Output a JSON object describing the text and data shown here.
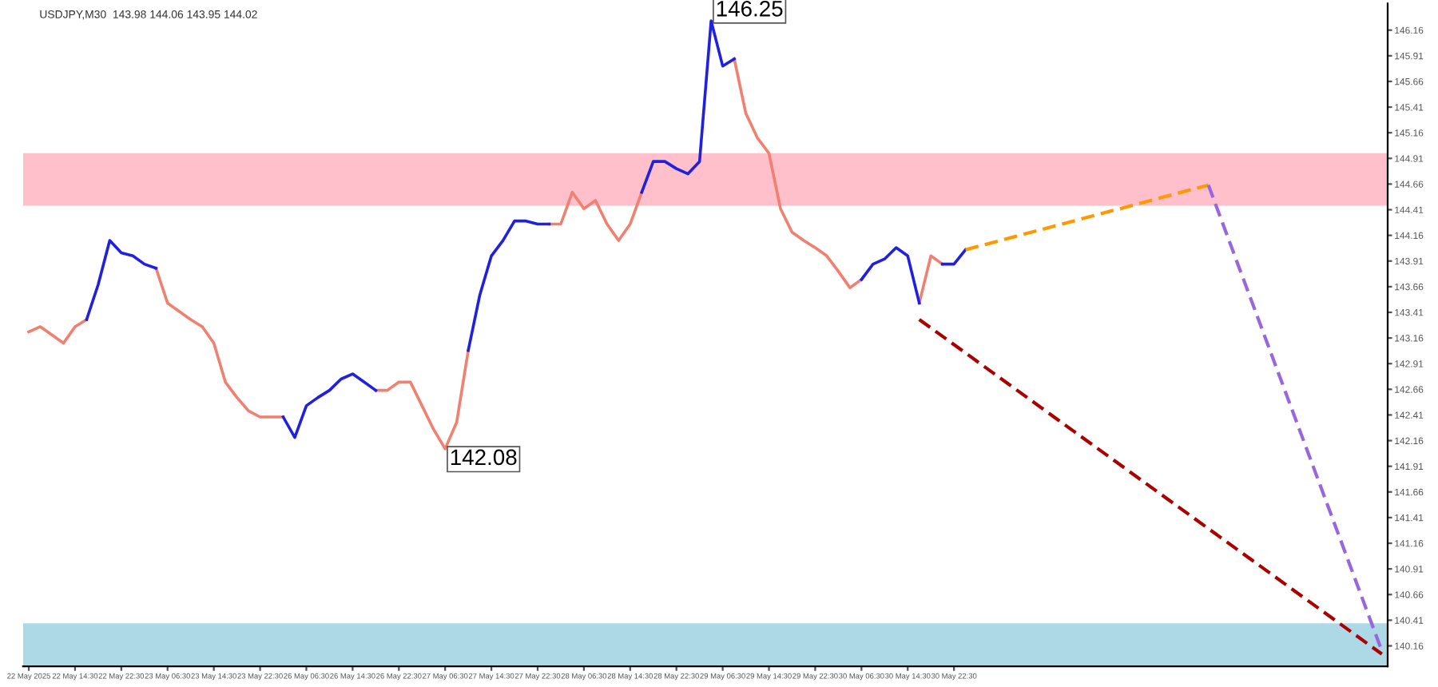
{
  "chart_data": {
    "type": "line",
    "title": "USDJPY,M30  143.98 144.06 143.95 144.02",
    "categories": [
      "22 May 2025",
      null,
      null,
      null,
      "22 May 14:30",
      null,
      null,
      null,
      "22 May 22:30",
      null,
      null,
      null,
      "23 May 06:30",
      null,
      null,
      null,
      "23 May 14:30",
      null,
      null,
      null,
      "23 May 22:30",
      null,
      null,
      null,
      "26 May 06:30",
      null,
      null,
      null,
      "26 May 14:30",
      null,
      null,
      null,
      "26 May 22:30",
      null,
      null,
      null,
      "27 May 06:30",
      null,
      null,
      null,
      "27 May 14:30",
      null,
      null,
      null,
      "27 May 22:30",
      null,
      null,
      null,
      "28 May 06:30",
      null,
      null,
      null,
      "28 May 14:30",
      null,
      null,
      null,
      "28 May 22:30",
      null,
      null,
      null,
      "29 May 06:30",
      null,
      null,
      null,
      "29 May 14:30",
      null,
      null,
      null,
      "29 May 22:30",
      null,
      null,
      null,
      "30 May 06:30",
      null,
      null,
      null,
      "30 May 14:30",
      null,
      null,
      null,
      "30 May 22:30",
      null,
      null,
      null,
      null,
      null,
      null,
      null,
      null,
      null,
      null,
      null,
      null,
      null,
      null,
      null,
      null,
      null,
      null,
      null,
      null,
      null,
      null,
      null,
      null,
      null,
      null,
      null,
      null,
      null,
      null,
      null,
      null,
      null,
      null,
      null,
      null,
      null
    ],
    "series": [
      {
        "color": "#f08070",
        "values": [
          143.22,
          143.27,
          143.19,
          143.11,
          143.27,
          143.34,
          null,
          null,
          null,
          null,
          null,
          143.84,
          143.5,
          143.42,
          143.34,
          143.27,
          143.11,
          142.73,
          142.58,
          142.45,
          142.39,
          142.39,
          142.39,
          null,
          null,
          null,
          null,
          null,
          null,
          null,
          142.65,
          142.65,
          142.73,
          142.73,
          142.5,
          142.27,
          142.08,
          142.34,
          143.04,
          null,
          null,
          null,
          null,
          null,
          null,
          144.27,
          144.27,
          144.58,
          144.42,
          144.5,
          144.27,
          144.11,
          144.27,
          144.58,
          null,
          null,
          null,
          null,
          null,
          null,
          null,
          145.88,
          145.35,
          145.11,
          144.96,
          144.42,
          144.19,
          144.11,
          144.04,
          143.96,
          143.81,
          143.65,
          143.73,
          null,
          null,
          null,
          null,
          143.5,
          143.96,
          143.88,
          null,
          null,
          null,
          null,
          null,
          null,
          null,
          null,
          null,
          null,
          null,
          null,
          null,
          null,
          null,
          null,
          null,
          null,
          null,
          null,
          null,
          null,
          null,
          null,
          null,
          null,
          null,
          null,
          null,
          null,
          null,
          null,
          null,
          null,
          null,
          null,
          null,
          null
        ]
      },
      {
        "color": "#2020e0",
        "values": [
          null,
          null,
          null,
          null,
          null,
          143.34,
          143.68,
          144.11,
          143.99,
          143.96,
          143.88,
          143.84,
          null,
          null,
          null,
          null,
          null,
          null,
          null,
          null,
          null,
          null,
          142.39,
          142.19,
          142.5,
          142.58,
          142.65,
          142.76,
          142.81,
          142.73,
          142.65,
          null,
          null,
          null,
          null,
          null,
          null,
          null,
          143.04,
          143.58,
          143.96,
          144.11,
          144.3,
          144.3,
          144.27,
          144.27,
          null,
          null,
          null,
          null,
          null,
          null,
          null,
          144.58,
          144.88,
          144.88,
          144.81,
          144.76,
          144.88,
          146.25,
          145.81,
          145.88,
          null,
          null,
          null,
          null,
          null,
          null,
          null,
          null,
          null,
          null,
          143.73,
          143.88,
          143.93,
          144.04,
          143.96,
          143.5,
          null,
          143.88,
          143.88,
          144.02,
          null,
          null,
          null,
          null,
          null,
          null,
          null,
          null,
          null,
          null,
          null,
          null,
          null,
          null,
          null,
          null,
          null,
          null,
          null,
          null,
          null,
          null,
          null,
          null,
          null,
          null,
          null,
          null,
          null,
          null,
          null,
          null,
          null,
          null,
          null,
          null
        ]
      },
      {
        "color": "#ff9900",
        "line_style": "dashed",
        "values": [
          null,
          null,
          null,
          null,
          null,
          null,
          null,
          null,
          null,
          null,
          null,
          null,
          null,
          null,
          null,
          null,
          null,
          null,
          null,
          null,
          null,
          null,
          null,
          null,
          null,
          null,
          null,
          null,
          null,
          null,
          null,
          null,
          null,
          null,
          null,
          null,
          null,
          null,
          null,
          null,
          null,
          null,
          null,
          null,
          null,
          null,
          null,
          null,
          null,
          null,
          null,
          null,
          null,
          null,
          null,
          null,
          null,
          null,
          null,
          null,
          null,
          null,
          null,
          null,
          null,
          null,
          null,
          null,
          null,
          null,
          null,
          null,
          null,
          null,
          null,
          null,
          null,
          null,
          null,
          null,
          null,
          144.02,
          null,
          null,
          null,
          null,
          null,
          null,
          null,
          null,
          null,
          null,
          null,
          null,
          null,
          null,
          null,
          null,
          null,
          null,
          null,
          null,
          144.65,
          null,
          null,
          null,
          null,
          null,
          null,
          null,
          null,
          null,
          null,
          null,
          null,
          null,
          null,
          null
        ]
      },
      {
        "color": "#9966dd",
        "line_style": "dashed",
        "values": [
          null,
          null,
          null,
          null,
          null,
          null,
          null,
          null,
          null,
          null,
          null,
          null,
          null,
          null,
          null,
          null,
          null,
          null,
          null,
          null,
          null,
          null,
          null,
          null,
          null,
          null,
          null,
          null,
          null,
          null,
          null,
          null,
          null,
          null,
          null,
          null,
          null,
          null,
          null,
          null,
          null,
          null,
          null,
          null,
          null,
          null,
          null,
          null,
          null,
          null,
          null,
          null,
          null,
          null,
          null,
          null,
          null,
          null,
          null,
          null,
          null,
          null,
          null,
          null,
          null,
          null,
          null,
          null,
          null,
          null,
          null,
          null,
          null,
          null,
          null,
          null,
          null,
          null,
          null,
          null,
          null,
          null,
          null,
          null,
          null,
          null,
          null,
          null,
          null,
          null,
          null,
          null,
          null,
          null,
          null,
          null,
          null,
          null,
          null,
          null,
          null,
          null,
          144.65,
          null,
          null,
          null,
          null,
          null,
          null,
          null,
          null,
          null,
          null,
          null,
          null,
          null,
          null,
          140.11
        ]
      },
      {
        "color": "#aa0000",
        "line_style": "dashed",
        "values": [
          null,
          null,
          null,
          null,
          null,
          null,
          null,
          null,
          null,
          null,
          null,
          null,
          null,
          null,
          null,
          null,
          null,
          null,
          null,
          null,
          null,
          null,
          null,
          null,
          null,
          null,
          null,
          null,
          null,
          null,
          null,
          null,
          null,
          null,
          null,
          null,
          null,
          null,
          null,
          null,
          null,
          null,
          null,
          null,
          null,
          null,
          null,
          null,
          null,
          null,
          null,
          null,
          null,
          null,
          null,
          null,
          null,
          null,
          null,
          null,
          null,
          null,
          null,
          null,
          null,
          null,
          null,
          null,
          null,
          null,
          null,
          null,
          null,
          null,
          null,
          null,
          null,
          143.34,
          null,
          null,
          null,
          null,
          null,
          null,
          null,
          null,
          null,
          null,
          null,
          null,
          null,
          null,
          null,
          null,
          null,
          null,
          null,
          null,
          null,
          null,
          null,
          null,
          null,
          null,
          null,
          null,
          null,
          null,
          null,
          null,
          null,
          null,
          null,
          null,
          null,
          null,
          null,
          140.08
        ]
      }
    ],
    "ylim": [
      139.96,
      146.42
    ],
    "yticks": [
      146.16,
      145.91,
      145.66,
      145.41,
      145.16,
      144.91,
      144.66,
      144.41,
      144.16,
      143.91,
      143.66,
      143.41,
      143.16,
      142.91,
      142.66,
      142.41,
      142.16,
      141.91,
      141.66,
      141.41,
      141.16,
      140.91,
      140.66,
      140.41,
      140.16
    ],
    "bands": [
      {
        "axis": "y",
        "from": 144.45,
        "to": 144.96,
        "color": "#ffc0cb"
      },
      {
        "axis": "y",
        "from": 139.96,
        "to": 140.38,
        "color": "#add8e6"
      }
    ],
    "annotations": [
      "146.25",
      "142.08"
    ],
    "grid": false,
    "legend": false,
    "marker": "none",
    "line_style": "solid"
  }
}
